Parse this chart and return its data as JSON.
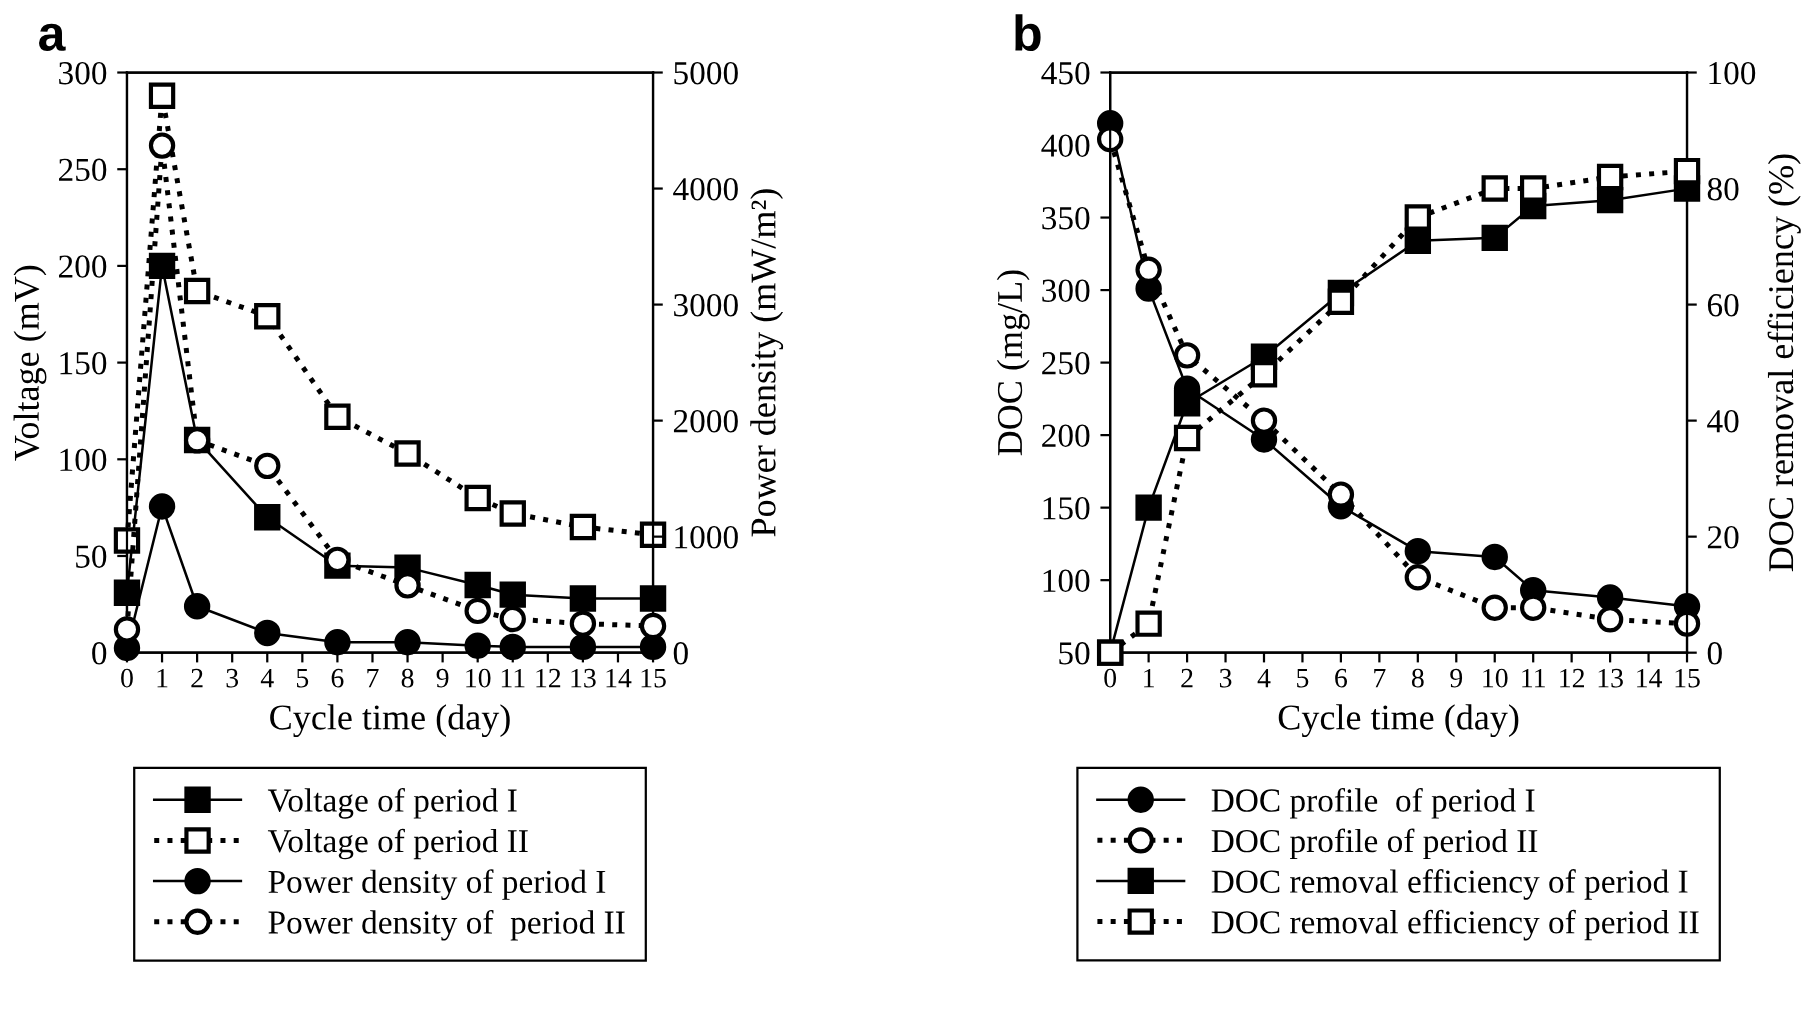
{
  "chart_data": [
    {
      "type": "line",
      "title": "a",
      "xlabel": "Cycle time (day)",
      "ylabel": "Voltage (mV)",
      "y2label": "Power density (mW/m²)",
      "x": [
        0,
        1,
        2,
        4,
        6,
        8,
        10,
        11,
        13,
        15
      ],
      "xlim": [
        0,
        15
      ],
      "xticks": [
        0,
        1,
        2,
        3,
        4,
        5,
        6,
        7,
        8,
        9,
        10,
        11,
        12,
        13,
        14,
        15
      ],
      "ylim": [
        0,
        300
      ],
      "yticks": [
        0,
        50,
        100,
        150,
        200,
        250,
        300
      ],
      "y2lim": [
        0,
        5000
      ],
      "y2ticks": [
        0,
        1000,
        2000,
        3000,
        4000,
        5000
      ],
      "grid": false,
      "legend": "bottom",
      "series": [
        {
          "name": "Voltage of period I",
          "color": "#000000",
          "marker": "square",
          "line_style": "solid",
          "axis": "y",
          "values": [
            31,
            200,
            110,
            70,
            45,
            44,
            35,
            30,
            28,
            28
          ]
        },
        {
          "name": "Voltage of period II",
          "color": "#000000",
          "marker": "square",
          "line_style": "dotted",
          "axis": "y",
          "values": [
            58,
            288,
            187,
            174,
            122,
            103,
            80,
            72,
            65,
            61
          ]
        },
        {
          "name": "Power density of period I",
          "color": "#000000",
          "marker": "circle",
          "line_style": "solid",
          "axis": "y2",
          "values": [
            40,
            1260,
            400,
            170,
            90,
            90,
            60,
            50,
            50,
            50
          ]
        },
        {
          "name": "Power density of  period II",
          "color": "#000000",
          "marker": "circle",
          "line_style": "dotted",
          "axis": "y2",
          "values": [
            200,
            4370,
            1830,
            1610,
            800,
            580,
            360,
            290,
            250,
            230
          ]
        }
      ]
    },
    {
      "type": "line",
      "title": "b",
      "xlabel": "Cycle time (day)",
      "ylabel": "DOC (mg/L)",
      "y2label": "DOC removal efficiency (%)",
      "x": [
        0,
        1,
        2,
        4,
        6,
        8,
        10,
        11,
        13,
        15
      ],
      "xlim": [
        0,
        15
      ],
      "xticks": [
        0,
        1,
        2,
        3,
        4,
        5,
        6,
        7,
        8,
        9,
        10,
        11,
        12,
        13,
        14,
        15
      ],
      "ylim": [
        50,
        450
      ],
      "yticks": [
        50,
        100,
        150,
        200,
        250,
        300,
        350,
        400,
        450
      ],
      "y2lim": [
        0,
        100
      ],
      "y2ticks": [
        0,
        20,
        40,
        60,
        80,
        100
      ],
      "grid": false,
      "legend": "bottom",
      "series": [
        {
          "name": "DOC profile  of period I",
          "color": "#000000",
          "marker": "circle",
          "line_style": "solid",
          "axis": "y",
          "values": [
            415,
            301,
            232,
            197,
            151,
            120,
            116,
            93,
            88,
            82
          ]
        },
        {
          "name": "DOC profile of period II",
          "color": "#000000",
          "marker": "circle",
          "line_style": "dotted",
          "axis": "y",
          "values": [
            404,
            314,
            255,
            210,
            159,
            102,
            81,
            81,
            73,
            70
          ]
        },
        {
          "name": "DOC removal efficiency of period I",
          "color": "#000000",
          "marker": "square",
          "line_style": "solid",
          "axis": "y2",
          "values": [
            0,
            25,
            43,
            51,
            62,
            71,
            71.5,
            77,
            78,
            80
          ]
        },
        {
          "name": "DOC removal efficiency of period II",
          "color": "#000000",
          "marker": "square",
          "line_style": "dotted",
          "axis": "y2",
          "values": [
            0,
            5,
            37,
            48,
            60.5,
            75,
            80,
            80,
            82,
            83
          ]
        }
      ]
    }
  ]
}
